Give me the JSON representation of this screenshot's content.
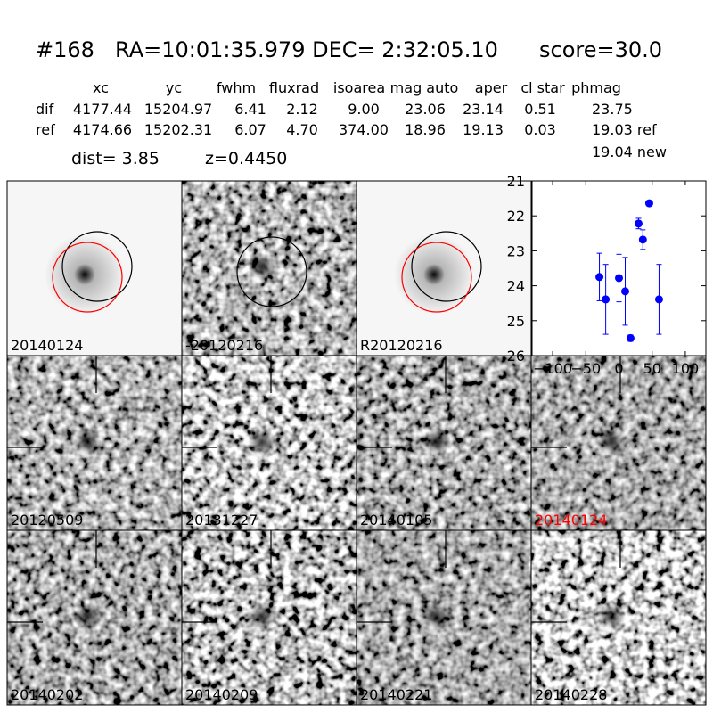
{
  "header": {
    "id": "#168",
    "coords": "RA=10:01:35.979 DEC= 2:32:05.10",
    "score": "score=30.0"
  },
  "table": {
    "columns": [
      "xc",
      "yc",
      "fwhm",
      "fluxrad",
      "isoarea",
      "mag auto",
      "aper",
      "cl star",
      "phmag"
    ],
    "rows": [
      [
        "dif",
        "4177.44",
        "15204.97",
        "6.41",
        "2.12",
        "9.00",
        "23.06",
        "23.14",
        "0.51",
        "23.75"
      ],
      [
        "ref",
        "4174.66",
        "15202.31",
        "6.07",
        "4.70",
        "374.00",
        "18.96",
        "19.13",
        "0.03",
        "19.03 ref"
      ]
    ],
    "note": "19.04 new"
  },
  "info": {
    "dist": "dist=  3.85",
    "z": "z=0.4450"
  },
  "stamps": [
    {
      "label": "20140124"
    },
    {
      "label": "-20120216"
    },
    {
      "label": "R20120216"
    },
    {
      "label": "20120509"
    },
    {
      "label": "20131227"
    },
    {
      "label": "20140105"
    },
    {
      "label": "20140124"
    },
    {
      "label": "20140202"
    },
    {
      "label": "20140209"
    },
    {
      "label": "20140221"
    },
    {
      "label": "20140228"
    }
  ],
  "chart_data": {
    "type": "scatter",
    "color": "#0000ff",
    "x": [
      -29.5,
      -20,
      0,
      9.4,
      17.4,
      29.5,
      36,
      45.6,
      60.4
    ],
    "values": [
      23.75,
      24.39,
      23.78,
      24.16,
      25.5,
      22.22,
      22.68,
      21.64,
      24.39
    ],
    "errors": [
      0.68,
      1.0,
      0.68,
      0.97,
      0.09,
      0.15,
      0.28,
      0.08,
      1.0
    ],
    "xlim": [
      -131,
      131
    ],
    "ylim": [
      21,
      26
    ],
    "y_inverted": true,
    "xticks": [
      {
        "value": -100,
        "label": "−100"
      },
      {
        "value": -50,
        "label": "−50"
      },
      0,
      50,
      100
    ],
    "yticks": [
      21,
      22,
      23,
      24,
      25,
      26
    ]
  }
}
